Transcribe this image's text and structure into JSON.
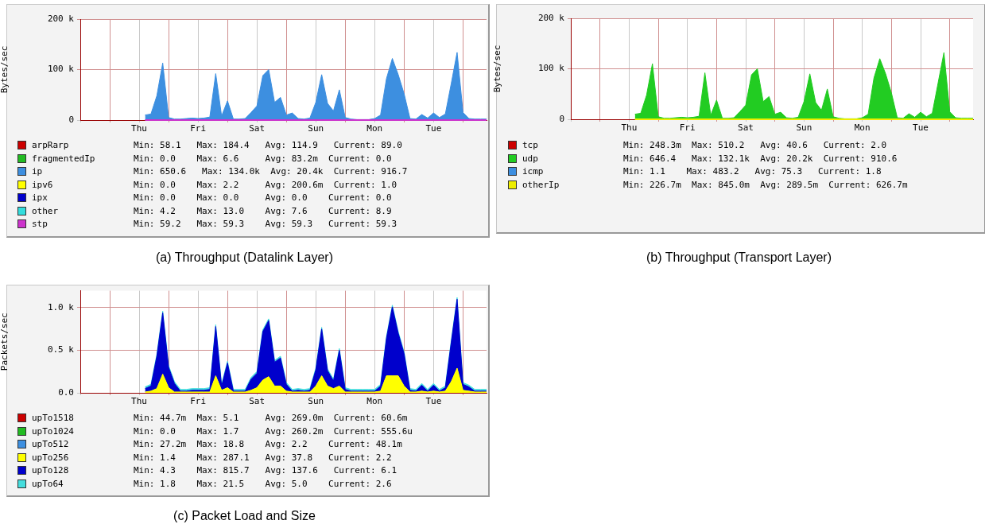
{
  "chart_data": [
    {
      "type": "area",
      "title": "(a) Throughput (Datalink Layer)",
      "ylabel": "Bytes/sec",
      "categories": [
        null,
        null,
        null,
        null,
        null,
        null,
        null,
        null,
        null,
        null,
        "Thu",
        null,
        null,
        null,
        null,
        null,
        null,
        null,
        null,
        null,
        "Fri",
        null,
        null,
        null,
        null,
        null,
        null,
        null,
        null,
        null,
        "Sat",
        null,
        null,
        null,
        null,
        null,
        null,
        null,
        null,
        null,
        "Sun",
        null,
        null,
        null,
        null,
        null,
        null,
        null,
        null,
        null,
        "Mon",
        null,
        null,
        null,
        null,
        null,
        null,
        null,
        null,
        null,
        "Tue",
        null,
        null,
        null,
        null,
        null,
        null,
        null,
        null,
        null
      ],
      "ylim": [
        0,
        200000
      ],
      "yticks": [
        {
          "value": 0,
          "label": "0"
        },
        {
          "value": 100000,
          "label": "100 k"
        },
        {
          "value": 200000,
          "label": "200 k"
        }
      ],
      "grid": true,
      "legend": "bottom",
      "series": [
        {
          "name": "arpRarp",
          "color": "#cc0000",
          "values": [
            null,
            null,
            null,
            null,
            null,
            null,
            null,
            null,
            null,
            null,
            null,
            null,
            null,
            null,
            null,
            null,
            null,
            null,
            null,
            null,
            null,
            null,
            null,
            null,
            null,
            null,
            null,
            null,
            null,
            null,
            null,
            null,
            null,
            null,
            null,
            null,
            null,
            null,
            null,
            null,
            null,
            null,
            null,
            null,
            null,
            null,
            null,
            null,
            null,
            null,
            null,
            null,
            null,
            null,
            null,
            null,
            null,
            null,
            null,
            null,
            null,
            null,
            null,
            null,
            null,
            null,
            null,
            null,
            null,
            null
          ]
        },
        {
          "name": "fragmentedIp",
          "color": "#22bb22",
          "values": [
            null,
            null,
            null,
            null,
            null,
            null,
            null,
            null,
            null,
            null,
            null,
            null,
            null,
            null,
            null,
            null,
            null,
            null,
            null,
            null,
            null,
            null,
            null,
            null,
            null,
            null,
            null,
            null,
            null,
            null,
            null,
            null,
            null,
            null,
            null,
            null,
            null,
            null,
            null,
            null,
            null,
            null,
            null,
            null,
            null,
            null,
            null,
            null,
            null,
            null,
            null,
            null,
            null,
            null,
            null,
            null,
            null,
            null,
            null,
            null,
            null,
            null,
            null,
            null,
            null,
            null,
            null,
            null,
            null,
            null
          ]
        },
        {
          "name": "ip",
          "color": "#3d8fe0",
          "values": [
            null,
            null,
            null,
            null,
            null,
            null,
            null,
            null,
            null,
            null,
            null,
            10000,
            12000,
            48000,
            113000,
            5000,
            2000,
            2000,
            3000,
            4000,
            3000,
            4000,
            6000,
            92000,
            8000,
            38000,
            2000,
            2000,
            3000,
            15000,
            28000,
            88000,
            100000,
            35000,
            45000,
            10000,
            14000,
            3000,
            2000,
            4000,
            35000,
            90000,
            33000,
            18000,
            60000,
            5000,
            2000,
            1000,
            1000,
            1000,
            3000,
            10000,
            82000,
            122000,
            90000,
            52000,
            3000,
            2000,
            11000,
            4000,
            14000,
            5000,
            12000,
            72000,
            134000,
            15000,
            3000,
            2000,
            2000,
            2000
          ]
        },
        {
          "name": "ipv6",
          "color": "#ffff00",
          "values": [
            null,
            null,
            null,
            null,
            null,
            null,
            null,
            null,
            null,
            null,
            null,
            null,
            null,
            null,
            null,
            null,
            null,
            null,
            null,
            null,
            null,
            null,
            null,
            null,
            null,
            null,
            null,
            null,
            null,
            null,
            null,
            null,
            null,
            null,
            null,
            null,
            null,
            null,
            null,
            null,
            null,
            null,
            null,
            null,
            null,
            null,
            null,
            null,
            null,
            null,
            null,
            null,
            null,
            null,
            null,
            null,
            null,
            null,
            null,
            null,
            null,
            null,
            null,
            null,
            null,
            null,
            null,
            null,
            null,
            null
          ]
        },
        {
          "name": "ipx",
          "color": "#0000cc",
          "values": [
            null,
            null,
            null,
            null,
            null,
            null,
            null,
            null,
            null,
            null,
            null,
            null,
            null,
            null,
            null,
            null,
            null,
            null,
            null,
            null,
            null,
            null,
            null,
            null,
            null,
            null,
            null,
            null,
            null,
            null,
            null,
            null,
            null,
            null,
            null,
            null,
            null,
            null,
            null,
            null,
            null,
            null,
            null,
            null,
            null,
            null,
            null,
            null,
            null,
            null,
            null,
            null,
            null,
            null,
            null,
            null,
            null,
            null,
            null,
            null,
            null,
            null,
            null,
            null,
            null,
            null,
            null,
            null,
            null,
            null
          ]
        },
        {
          "name": "other",
          "color": "#33dddd",
          "values": [
            null,
            null,
            null,
            null,
            null,
            null,
            null,
            null,
            null,
            null,
            null,
            null,
            null,
            null,
            null,
            null,
            null,
            null,
            null,
            null,
            null,
            null,
            null,
            null,
            null,
            null,
            null,
            null,
            null,
            null,
            null,
            null,
            null,
            null,
            null,
            null,
            null,
            null,
            null,
            null,
            null,
            null,
            null,
            null,
            null,
            null,
            null,
            null,
            null,
            null,
            null,
            null,
            null,
            null,
            null,
            null,
            null,
            null,
            null,
            null,
            null,
            null,
            null,
            null,
            null,
            null,
            null,
            null,
            null,
            null
          ]
        },
        {
          "name": "stp",
          "color": "#cc33cc",
          "type": "line",
          "values": [
            null,
            null,
            null,
            null,
            null,
            null,
            null,
            null,
            null,
            null,
            null,
            0,
            0,
            0,
            0,
            0,
            0,
            0,
            0,
            0,
            0,
            0,
            0,
            0,
            0,
            0,
            0,
            0,
            0,
            0,
            0,
            0,
            0,
            0,
            0,
            0,
            0,
            0,
            0,
            0,
            0,
            0,
            0,
            0,
            0,
            0,
            0,
            0,
            0,
            0,
            0,
            0,
            0,
            0,
            0,
            0,
            0,
            0,
            0,
            0,
            0,
            0,
            0,
            0,
            0,
            0,
            0,
            0,
            0,
            0
          ]
        }
      ],
      "annotations": [
        "Min: 58.1   Max: 184.4   Avg: 114.9   Current: 89.0",
        "Min: 0.0    Max: 6.6     Avg: 83.2m  Current: 0.0",
        "Min: 650.6   Max: 134.0k  Avg: 20.4k  Current: 916.7",
        "Min: 0.0    Max: 2.2     Avg: 200.6m  Current: 1.0",
        "Min: 0.0    Max: 0.0     Avg: 0.0    Current: 0.0",
        "Min: 4.2    Max: 13.0    Avg: 7.6    Current: 8.9",
        "Min: 59.2   Max: 59.3    Avg: 59.3   Current: 59.3"
      ]
    },
    {
      "type": "area",
      "title": "(b) Throughput (Transport Layer)",
      "ylabel": "Bytes/sec",
      "categories": [
        null,
        null,
        null,
        null,
        null,
        null,
        null,
        null,
        null,
        null,
        "Thu",
        null,
        null,
        null,
        null,
        null,
        null,
        null,
        null,
        null,
        "Fri",
        null,
        null,
        null,
        null,
        null,
        null,
        null,
        null,
        null,
        "Sat",
        null,
        null,
        null,
        null,
        null,
        null,
        null,
        null,
        null,
        "Sun",
        null,
        null,
        null,
        null,
        null,
        null,
        null,
        null,
        null,
        "Mon",
        null,
        null,
        null,
        null,
        null,
        null,
        null,
        null,
        null,
        "Tue",
        null,
        null,
        null,
        null,
        null,
        null,
        null,
        null,
        null
      ],
      "ylim": [
        0,
        200000
      ],
      "yticks": [
        {
          "value": 0,
          "label": "0"
        },
        {
          "value": 100000,
          "label": "100 k"
        },
        {
          "value": 200000,
          "label": "200 k"
        }
      ],
      "grid": true,
      "legend": "bottom",
      "series": [
        {
          "name": "tcp",
          "color": "#cc0000",
          "values": [
            null,
            null,
            null,
            null,
            null,
            null,
            null,
            null,
            null,
            null,
            null,
            null,
            null,
            null,
            null,
            null,
            null,
            null,
            null,
            null,
            null,
            null,
            null,
            null,
            null,
            null,
            null,
            null,
            null,
            null,
            null,
            null,
            null,
            null,
            null,
            null,
            null,
            null,
            null,
            null,
            null,
            null,
            null,
            null,
            null,
            null,
            null,
            null,
            null,
            null,
            null,
            null,
            null,
            null,
            null,
            null,
            null,
            null,
            null,
            null,
            null,
            null,
            null,
            null,
            null,
            null,
            null,
            null,
            null,
            null
          ]
        },
        {
          "name": "udp",
          "color": "#22cc22",
          "values": [
            null,
            null,
            null,
            null,
            null,
            null,
            null,
            null,
            null,
            null,
            null,
            10000,
            12000,
            48000,
            110000,
            5000,
            2000,
            2000,
            3000,
            4000,
            3000,
            4000,
            6000,
            92000,
            8000,
            38000,
            2000,
            2000,
            3000,
            15000,
            28000,
            88000,
            100000,
            35000,
            45000,
            10000,
            14000,
            3000,
            2000,
            4000,
            35000,
            90000,
            33000,
            18000,
            60000,
            5000,
            2000,
            1000,
            1000,
            1000,
            3000,
            10000,
            82000,
            120000,
            90000,
            52000,
            3000,
            2000,
            11000,
            4000,
            14000,
            5000,
            12000,
            72000,
            132000,
            15000,
            3000,
            2000,
            2000,
            2000
          ]
        },
        {
          "name": "icmp",
          "color": "#3d8fe0",
          "values": [
            null,
            null,
            null,
            null,
            null,
            null,
            null,
            null,
            null,
            null,
            null,
            null,
            null,
            null,
            null,
            null,
            null,
            null,
            null,
            null,
            null,
            null,
            null,
            null,
            null,
            null,
            null,
            null,
            null,
            null,
            null,
            null,
            null,
            null,
            null,
            null,
            null,
            null,
            null,
            null,
            null,
            null,
            null,
            null,
            null,
            null,
            null,
            null,
            null,
            null,
            null,
            null,
            null,
            null,
            null,
            null,
            null,
            null,
            null,
            null,
            null,
            null,
            null,
            null,
            null,
            null,
            null,
            null,
            null,
            null
          ]
        },
        {
          "name": "otherIp",
          "color": "#eeee00",
          "type": "line",
          "values": [
            null,
            null,
            null,
            null,
            null,
            null,
            null,
            null,
            null,
            null,
            null,
            0,
            0,
            0,
            0,
            0,
            0,
            0,
            0,
            0,
            0,
            0,
            0,
            0,
            0,
            0,
            0,
            0,
            0,
            0,
            0,
            0,
            0,
            0,
            0,
            0,
            0,
            0,
            0,
            0,
            0,
            0,
            0,
            0,
            0,
            0,
            0,
            0,
            0,
            0,
            0,
            0,
            0,
            0,
            0,
            0,
            0,
            0,
            0,
            0,
            0,
            0,
            0,
            0,
            0,
            0,
            0,
            0,
            0,
            0
          ]
        }
      ],
      "annotations": [
        "Min: 248.3m  Max: 510.2   Avg: 40.6   Current: 2.0",
        "Min: 646.4   Max: 132.1k  Avg: 20.2k  Current: 910.6",
        "Min: 1.1    Max: 483.2   Avg: 75.3   Current: 1.8",
        "Min: 226.7m  Max: 845.0m  Avg: 289.5m  Current: 626.7m"
      ]
    },
    {
      "type": "area",
      "title": "(c) Packet Load and Size",
      "ylabel": "Packets/sec",
      "stacked": true,
      "categories": [
        null,
        null,
        null,
        null,
        null,
        null,
        null,
        null,
        null,
        null,
        "Thu",
        null,
        null,
        null,
        null,
        null,
        null,
        null,
        null,
        null,
        "Fri",
        null,
        null,
        null,
        null,
        null,
        null,
        null,
        null,
        null,
        "Sat",
        null,
        null,
        null,
        null,
        null,
        null,
        null,
        null,
        null,
        "Sun",
        null,
        null,
        null,
        null,
        null,
        null,
        null,
        null,
        null,
        "Mon",
        null,
        null,
        null,
        null,
        null,
        null,
        null,
        null,
        null,
        "Tue",
        null,
        null,
        null,
        null,
        null,
        null,
        null,
        null,
        null
      ],
      "ylim": [
        0,
        1200
      ],
      "yticks": [
        {
          "value": 0,
          "label": "0.0"
        },
        {
          "value": 500,
          "label": "0.5 k"
        },
        {
          "value": 1000,
          "label": "1.0 k"
        }
      ],
      "grid": true,
      "legend": "bottom",
      "series": [
        {
          "name": "upTo1518",
          "color": "#cc0000",
          "values": [
            null,
            null,
            null,
            null,
            null,
            null,
            null,
            null,
            null,
            null,
            null,
            null,
            null,
            null,
            null,
            null,
            null,
            null,
            null,
            null,
            null,
            null,
            null,
            null,
            null,
            null,
            null,
            null,
            null,
            null,
            null,
            null,
            null,
            null,
            null,
            null,
            null,
            null,
            null,
            null,
            null,
            null,
            null,
            null,
            null,
            null,
            null,
            null,
            null,
            null,
            null,
            null,
            null,
            null,
            null,
            null,
            null,
            null,
            null,
            null,
            null,
            null,
            null,
            null,
            null,
            null,
            null,
            null,
            null,
            null
          ]
        },
        {
          "name": "upTo1024",
          "color": "#22bb22",
          "values": [
            null,
            null,
            null,
            null,
            null,
            null,
            null,
            null,
            null,
            null,
            null,
            null,
            null,
            null,
            null,
            null,
            null,
            null,
            null,
            null,
            null,
            null,
            null,
            null,
            null,
            null,
            null,
            null,
            null,
            null,
            null,
            null,
            null,
            null,
            null,
            null,
            null,
            null,
            null,
            null,
            null,
            null,
            null,
            null,
            null,
            null,
            null,
            null,
            null,
            null,
            null,
            null,
            null,
            null,
            null,
            null,
            null,
            null,
            null,
            null,
            null,
            null,
            null,
            null,
            null,
            null,
            null,
            null,
            null,
            null
          ]
        },
        {
          "name": "upTo512",
          "color": "#3d8fe0",
          "values": [
            null,
            null,
            null,
            null,
            null,
            null,
            null,
            null,
            null,
            null,
            null,
            null,
            null,
            null,
            null,
            null,
            null,
            null,
            null,
            null,
            null,
            null,
            null,
            null,
            null,
            null,
            null,
            null,
            null,
            null,
            null,
            null,
            null,
            null,
            null,
            null,
            null,
            null,
            null,
            null,
            null,
            null,
            null,
            null,
            null,
            null,
            null,
            null,
            null,
            null,
            null,
            null,
            null,
            null,
            null,
            null,
            null,
            null,
            null,
            null,
            null,
            null,
            null,
            null,
            null,
            null,
            null,
            null,
            null,
            null
          ]
        },
        {
          "name": "upTo256",
          "color": "#ffff00",
          "values": [
            null,
            null,
            null,
            null,
            null,
            null,
            null,
            null,
            null,
            null,
            null,
            10,
            20,
            50,
            220,
            60,
            10,
            10,
            10,
            10,
            10,
            10,
            10,
            200,
            30,
            60,
            10,
            10,
            10,
            30,
            60,
            150,
            190,
            80,
            80,
            20,
            10,
            10,
            10,
            10,
            80,
            200,
            80,
            50,
            80,
            10,
            10,
            10,
            10,
            10,
            10,
            20,
            200,
            200,
            200,
            80,
            10,
            10,
            20,
            10,
            20,
            10,
            20,
            130,
            290,
            30,
            20,
            10,
            10,
            10
          ]
        },
        {
          "name": "upTo128",
          "color": "#0000cc",
          "values": [
            null,
            null,
            null,
            null,
            null,
            null,
            null,
            null,
            null,
            null,
            null,
            40,
            60,
            380,
            720,
            240,
            100,
            10,
            10,
            20,
            20,
            20,
            30,
            580,
            50,
            290,
            10,
            10,
            10,
            130,
            170,
            570,
            660,
            280,
            330,
            80,
            10,
            20,
            10,
            20,
            190,
            550,
            180,
            90,
            420,
            30,
            10,
            10,
            10,
            10,
            10,
            60,
            440,
            810,
            500,
            380,
            20,
            10,
            70,
            10,
            70,
            10,
            40,
            460,
            810,
            70,
            50,
            10,
            10,
            10
          ]
        },
        {
          "name": "upTo64",
          "color": "#44dddd",
          "values": [
            null,
            null,
            null,
            null,
            null,
            null,
            null,
            null,
            null,
            null,
            null,
            20,
            20,
            20,
            20,
            20,
            20,
            20,
            20,
            20,
            20,
            20,
            20,
            20,
            20,
            20,
            20,
            20,
            20,
            20,
            20,
            20,
            20,
            20,
            20,
            20,
            20,
            20,
            20,
            20,
            20,
            20,
            20,
            20,
            20,
            20,
            20,
            20,
            20,
            20,
            20,
            20,
            20,
            20,
            20,
            20,
            20,
            20,
            20,
            20,
            20,
            20,
            20,
            20,
            20,
            20,
            20,
            20,
            20,
            20
          ]
        }
      ],
      "annotations": [
        "Min: 44.7m  Max: 5.1     Avg: 269.0m  Current: 60.6m",
        "Min: 0.0    Max: 1.7     Avg: 260.2m  Current: 555.6u",
        "Min: 27.2m  Max: 18.8    Avg: 2.2    Current: 48.1m",
        "Min: 1.4    Max: 287.1   Avg: 37.8   Current: 2.2",
        "Min: 4.3    Max: 815.7   Avg: 137.6   Current: 6.1",
        "Min: 1.8    Max: 21.5    Avg: 5.0    Current: 2.6"
      ]
    }
  ]
}
